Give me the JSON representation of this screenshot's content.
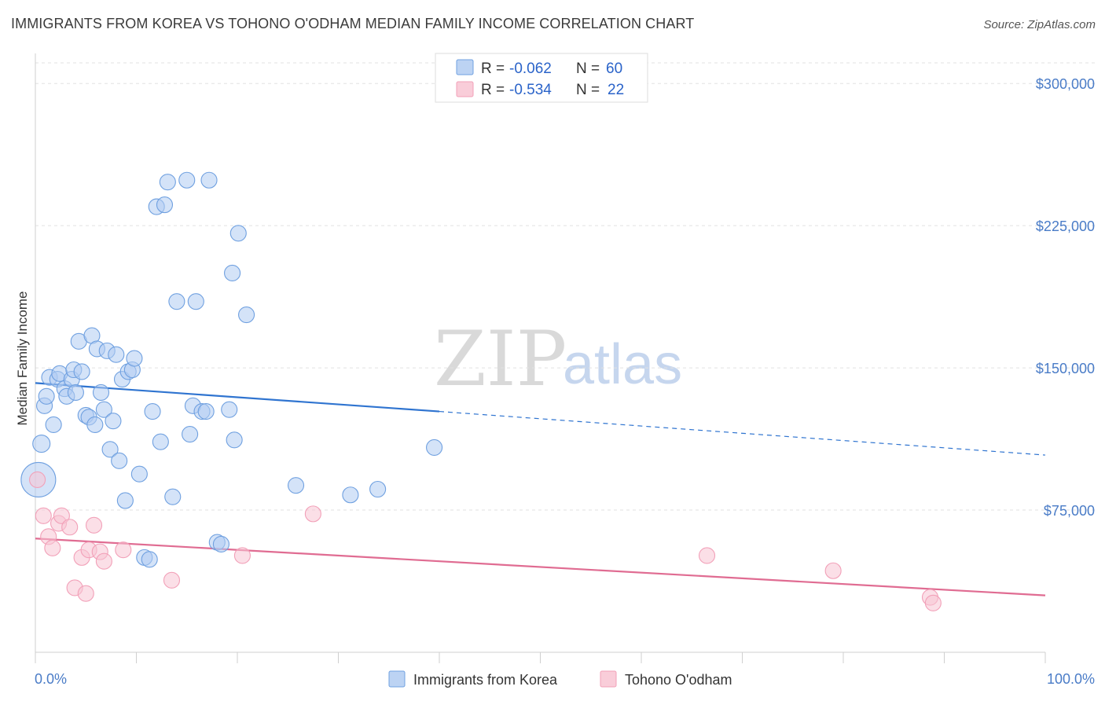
{
  "header": {
    "title": "IMMIGRANTS FROM KOREA VS TOHONO O'ODHAM MEDIAN FAMILY INCOME CORRELATION CHART",
    "source": "Source: ZipAtlas.com"
  },
  "watermark": {
    "part1": "ZIP",
    "part2": "atlas"
  },
  "legend": {
    "rows": [
      {
        "r_label": "R =",
        "r_value": "-0.062",
        "n_label": "N =",
        "n_value": "60",
        "color": "#6fa0e0"
      },
      {
        "r_label": "R =",
        "r_value": "-0.534",
        "n_label": "N =",
        "n_value": "22",
        "color": "#f2a0b8"
      }
    ]
  },
  "chart_data": {
    "type": "scatter",
    "title": "IMMIGRANTS FROM KOREA VS TOHONO O'ODHAM MEDIAN FAMILY INCOME CORRELATION CHART",
    "xlabel": "",
    "ylabel": "Median Family Income",
    "xlim": [
      0,
      100
    ],
    "ylim": [
      0,
      315000
    ],
    "x_tick_labels": [
      "0.0%",
      "100.0%"
    ],
    "y_ticks": [
      75000,
      150000,
      225000,
      300000
    ],
    "y_tick_labels": [
      "$75,000",
      "$150,000",
      "$225,000",
      "$300,000"
    ],
    "grid": true,
    "legend_position": "top-center",
    "series": [
      {
        "name": "Immigrants from Korea",
        "color": "#6fa0e0",
        "trend": {
          "x": [
            0,
            40,
            100
          ],
          "y": [
            142000,
            127000,
            104000
          ],
          "solid_until": 40
        },
        "points": [
          [
            0.3,
            91000,
            22
          ],
          [
            0.6,
            110000,
            11
          ],
          [
            0.9,
            130000,
            10
          ],
          [
            1.1,
            135000,
            10
          ],
          [
            1.4,
            145000,
            10
          ],
          [
            1.8,
            120000,
            10
          ],
          [
            2.2,
            144000,
            10
          ],
          [
            2.4,
            147000,
            10
          ],
          [
            2.9,
            139000,
            10
          ],
          [
            3.1,
            135000,
            10
          ],
          [
            3.6,
            144000,
            10
          ],
          [
            3.8,
            149000,
            10
          ],
          [
            4.0,
            137000,
            10
          ],
          [
            4.3,
            164000,
            10
          ],
          [
            4.6,
            148000,
            10
          ],
          [
            5.0,
            125000,
            10
          ],
          [
            5.3,
            124000,
            10
          ],
          [
            5.6,
            167000,
            10
          ],
          [
            5.9,
            120000,
            10
          ],
          [
            6.1,
            160000,
            10
          ],
          [
            6.5,
            137000,
            10
          ],
          [
            6.8,
            128000,
            10
          ],
          [
            7.1,
            159000,
            10
          ],
          [
            7.4,
            107000,
            10
          ],
          [
            7.7,
            122000,
            10
          ],
          [
            8.0,
            157000,
            10
          ],
          [
            8.3,
            101000,
            10
          ],
          [
            8.6,
            144000,
            10
          ],
          [
            8.9,
            80000,
            10
          ],
          [
            9.2,
            148000,
            10
          ],
          [
            9.6,
            149000,
            10
          ],
          [
            9.8,
            155000,
            10
          ],
          [
            10.3,
            94000,
            10
          ],
          [
            10.8,
            50000,
            10
          ],
          [
            11.3,
            49000,
            10
          ],
          [
            11.6,
            127000,
            10
          ],
          [
            12.0,
            235000,
            10
          ],
          [
            12.4,
            111000,
            10
          ],
          [
            12.8,
            236000,
            10
          ],
          [
            13.1,
            248000,
            10
          ],
          [
            13.6,
            82000,
            10
          ],
          [
            14.0,
            185000,
            10
          ],
          [
            15.0,
            249000,
            10
          ],
          [
            15.3,
            115000,
            10
          ],
          [
            15.6,
            130000,
            10
          ],
          [
            15.9,
            185000,
            10
          ],
          [
            16.5,
            127000,
            10
          ],
          [
            16.9,
            127000,
            10
          ],
          [
            17.2,
            249000,
            10
          ],
          [
            18.0,
            58000,
            10
          ],
          [
            18.4,
            57000,
            10
          ],
          [
            19.2,
            128000,
            10
          ],
          [
            19.5,
            200000,
            10
          ],
          [
            19.7,
            112000,
            10
          ],
          [
            20.1,
            221000,
            10
          ],
          [
            20.9,
            178000,
            10
          ],
          [
            25.8,
            88000,
            10
          ],
          [
            31.2,
            83000,
            10
          ],
          [
            33.9,
            86000,
            10
          ],
          [
            39.5,
            108000,
            10
          ]
        ]
      },
      {
        "name": "Tohono O'odham",
        "color": "#f2a0b8",
        "trend": {
          "x": [
            0,
            100
          ],
          "y": [
            60000,
            30000
          ],
          "solid_until": 100
        },
        "points": [
          [
            0.2,
            91000,
            10
          ],
          [
            0.8,
            72000,
            10
          ],
          [
            1.3,
            61000,
            10
          ],
          [
            1.7,
            55000,
            10
          ],
          [
            2.3,
            68000,
            10
          ],
          [
            2.6,
            72000,
            10
          ],
          [
            3.4,
            66000,
            10
          ],
          [
            3.9,
            34000,
            10
          ],
          [
            4.6,
            50000,
            10
          ],
          [
            5.0,
            31000,
            10
          ],
          [
            5.3,
            54000,
            10
          ],
          [
            5.8,
            67000,
            10
          ],
          [
            6.4,
            53000,
            10
          ],
          [
            6.8,
            48000,
            10
          ],
          [
            8.7,
            54000,
            10
          ],
          [
            13.5,
            38000,
            10
          ],
          [
            20.5,
            51000,
            10
          ],
          [
            27.5,
            73000,
            10
          ],
          [
            66.5,
            51000,
            10
          ],
          [
            79.0,
            43000,
            10
          ],
          [
            88.6,
            29000,
            10
          ],
          [
            88.9,
            26000,
            10
          ]
        ]
      }
    ]
  }
}
